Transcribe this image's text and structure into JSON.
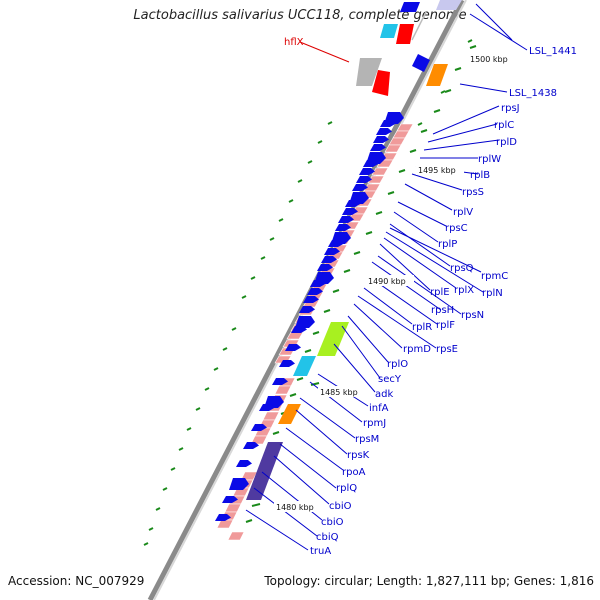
{
  "title": "Lactobacillus salivarius UCC118, complete genome",
  "footer": {
    "accession": "Accession: NC_007929",
    "info": "Topology: circular; Length: 1,827,111 bp; Genes: 1,816"
  },
  "colors": {
    "label_blue": "#0000cc",
    "label_red": "#dd0000",
    "cds_blue": "#0a0ae6",
    "ribosomal_pink": "#f09a9a",
    "backbone": "#9a9a9a",
    "tick_green": "#1a8a1a",
    "gray": "#b4b4b4",
    "red": "#ff0000",
    "cyan": "#22c3e8",
    "orange": "#ff8c00",
    "lime": "#a8f020",
    "purple": "#4f3aa0"
  },
  "position_labels": [
    "1500 kbp",
    "1495 kbp",
    "1490 kbp",
    "1485 kbp",
    "1480 kbp"
  ],
  "gene_labels": [
    {
      "text": "LSL_1441",
      "color": "blue"
    },
    {
      "text": "hflX",
      "color": "red"
    },
    {
      "text": "LSL_1438",
      "color": "blue"
    },
    {
      "text": "rpsJ",
      "color": "blue"
    },
    {
      "text": "rplC",
      "color": "blue"
    },
    {
      "text": "rplD",
      "color": "blue"
    },
    {
      "text": "rplW",
      "color": "blue"
    },
    {
      "text": "rplB",
      "color": "blue"
    },
    {
      "text": "rpsS",
      "color": "blue"
    },
    {
      "text": "rplV",
      "color": "blue"
    },
    {
      "text": "rpsC",
      "color": "blue"
    },
    {
      "text": "rplP",
      "color": "blue"
    },
    {
      "text": "rpsQ",
      "color": "blue"
    },
    {
      "text": "rpmC",
      "color": "blue"
    },
    {
      "text": "rplN",
      "color": "blue"
    },
    {
      "text": "rplX",
      "color": "blue"
    },
    {
      "text": "rplE",
      "color": "blue"
    },
    {
      "text": "rpsN",
      "color": "blue"
    },
    {
      "text": "rpsH",
      "color": "blue"
    },
    {
      "text": "rplF",
      "color": "blue"
    },
    {
      "text": "rplR",
      "color": "blue"
    },
    {
      "text": "rpsE",
      "color": "blue"
    },
    {
      "text": "rpmD",
      "color": "blue"
    },
    {
      "text": "rplO",
      "color": "blue"
    },
    {
      "text": "secY",
      "color": "blue"
    },
    {
      "text": "adk",
      "color": "blue"
    },
    {
      "text": "infA",
      "color": "blue"
    },
    {
      "text": "rpmJ",
      "color": "blue"
    },
    {
      "text": "rpsM",
      "color": "blue"
    },
    {
      "text": "rpsK",
      "color": "blue"
    },
    {
      "text": "rpoA",
      "color": "blue"
    },
    {
      "text": "rplQ",
      "color": "blue"
    },
    {
      "text": "cbiO",
      "color": "blue"
    },
    {
      "text": "cbiO",
      "color": "blue"
    },
    {
      "text": "cbiQ",
      "color": "blue"
    },
    {
      "text": "truA",
      "color": "blue"
    }
  ]
}
